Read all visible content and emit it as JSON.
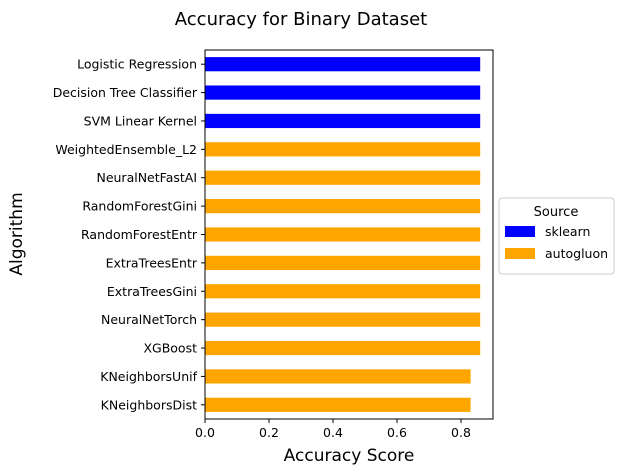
{
  "chart_data": {
    "type": "bar",
    "orientation": "horizontal",
    "title": "Accuracy for Binary Dataset",
    "xlabel": "Accuracy Score",
    "ylabel": "Algorithm",
    "xlim": [
      0,
      0.9
    ],
    "xticks": [
      "0.0",
      "0.2",
      "0.4",
      "0.6",
      "0.8"
    ],
    "xtick_values": [
      0,
      0.2,
      0.4,
      0.6,
      0.8
    ],
    "grid": false,
    "legend": {
      "title": "Source",
      "placement": "center-right outside",
      "entries": [
        {
          "name": "sklearn",
          "color": "#0000ff"
        },
        {
          "name": "autogluon",
          "color": "#ffa500"
        }
      ]
    },
    "categories": [
      "Logistic Regression",
      "Decision Tree Classifier",
      "SVM Linear Kernel",
      "WeightedEnsemble_L2",
      "NeuralNetFastAI",
      "RandomForestGini",
      "RandomForestEntr",
      "ExtraTreesEntr",
      "ExtraTreesGini",
      "NeuralNetTorch",
      "XGBoost",
      "KNeighborsUnif",
      "KNeighborsDist"
    ],
    "values": [
      0.86,
      0.86,
      0.86,
      0.86,
      0.86,
      0.86,
      0.86,
      0.86,
      0.86,
      0.86,
      0.86,
      0.83,
      0.83
    ],
    "sources": [
      "sklearn",
      "sklearn",
      "sklearn",
      "autogluon",
      "autogluon",
      "autogluon",
      "autogluon",
      "autogluon",
      "autogluon",
      "autogluon",
      "autogluon",
      "autogluon",
      "autogluon"
    ]
  }
}
